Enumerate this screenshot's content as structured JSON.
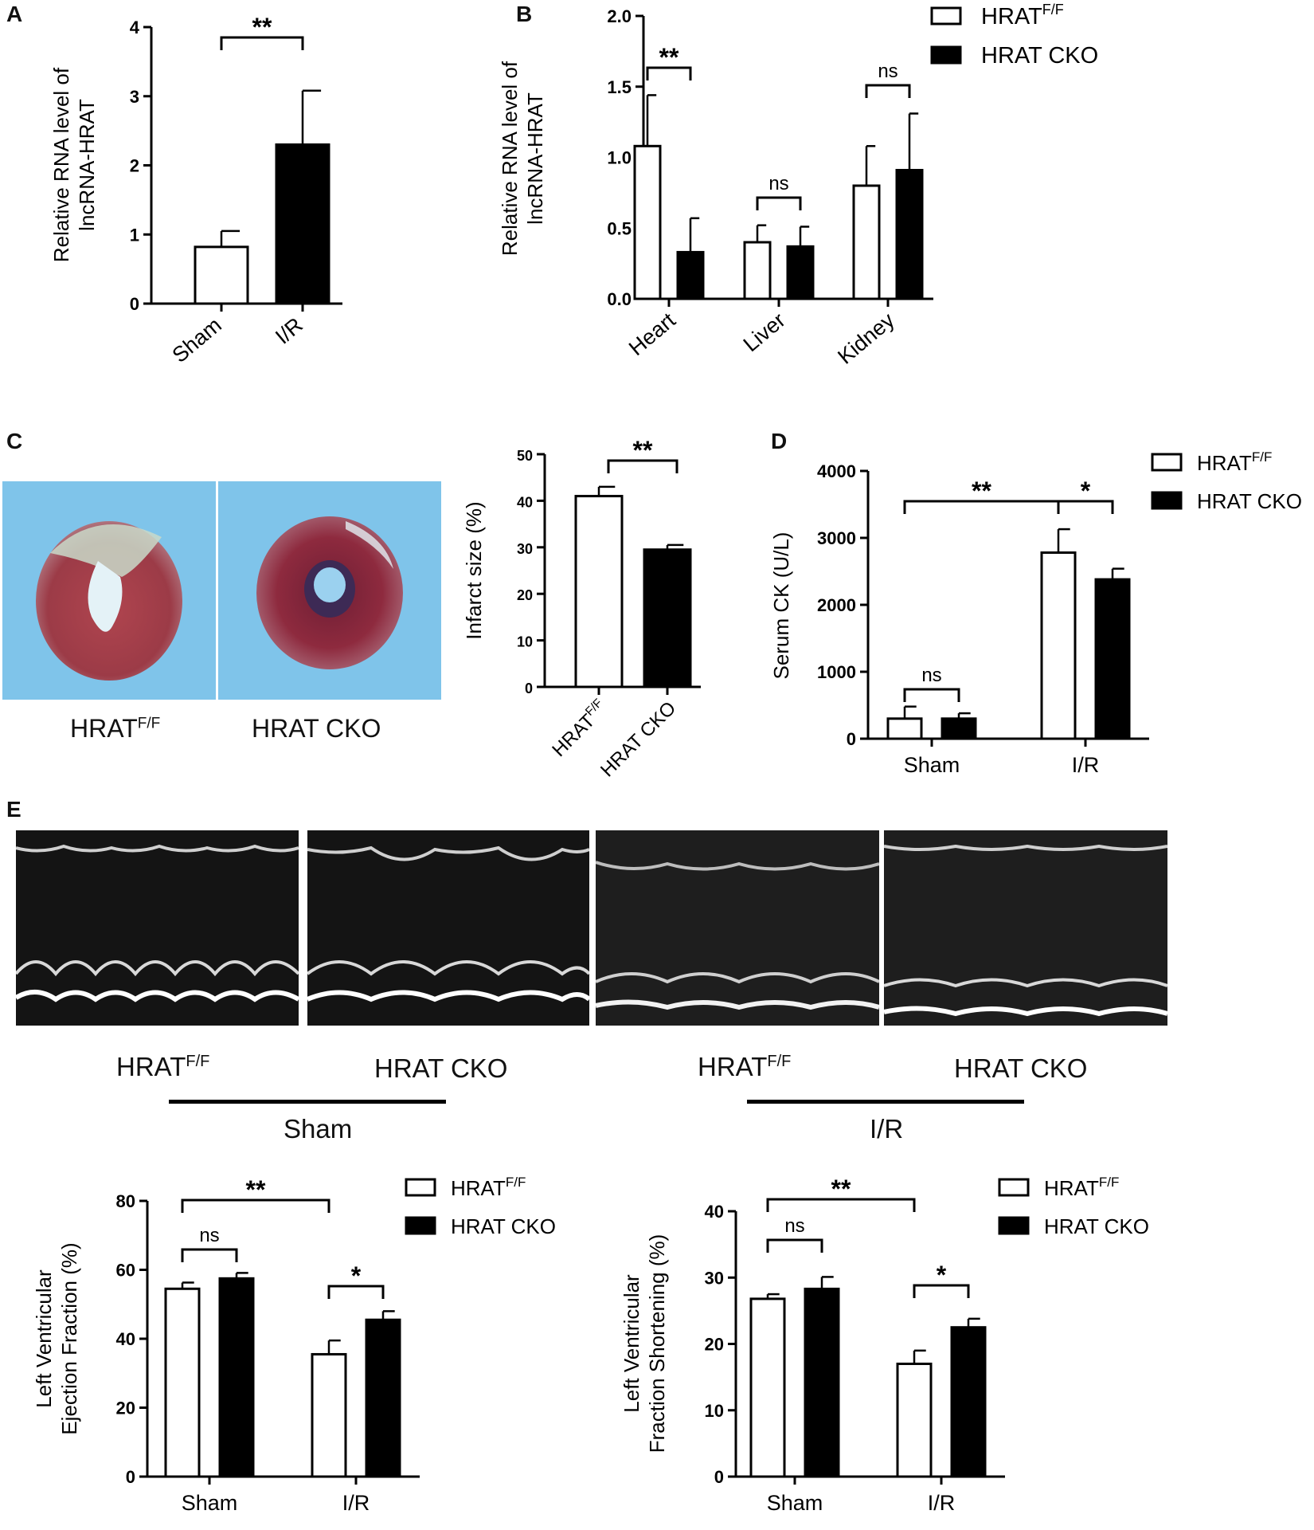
{
  "panel_letters": {
    "a": "A",
    "b": "B",
    "c": "C",
    "d": "D",
    "e": "E"
  },
  "legend": {
    "ff_base": "HRAT",
    "ff_sup": "F/F",
    "cko": "HRAT CKO"
  },
  "photo_labels": {
    "ff_base": "HRAT",
    "ff_sup": "F/F",
    "cko": "HRAT CKO"
  },
  "echo_labels": {
    "sham_ff_base": "HRAT",
    "sham_ff_sup": "F/F",
    "sham_cko": "HRAT CKO",
    "sham_group": "Sham",
    "ir_ff_base": "HRAT",
    "ir_ff_sup": "F/F",
    "ir_cko": "HRAT CKO",
    "ir_group": "I/R"
  },
  "colors": {
    "open_bar": "#ffffff",
    "filled_bar": "#000000",
    "stain_bg": "#7fc4ea",
    "echo_bg": "#1a1a1a"
  },
  "chart_data": [
    {
      "id": "A",
      "type": "bar",
      "ylabel": [
        "Relative RNA level of",
        "lncRNA-HRAT"
      ],
      "ylim": [
        0,
        4
      ],
      "yticks": [
        "0",
        "1",
        "2",
        "3",
        "4"
      ],
      "categories": [
        "Sham",
        "I/R"
      ],
      "values": [
        0.82,
        2.3
      ],
      "errors": [
        0.23,
        0.78
      ],
      "fills": [
        "open",
        "filled"
      ],
      "significance": [
        {
          "label": "**"
        }
      ]
    },
    {
      "id": "B",
      "type": "bar",
      "ylabel": [
        "Relative RNA level of",
        "lncRNA-HRAT"
      ],
      "ylim": [
        0,
        2.0
      ],
      "yticks": [
        "0.0",
        "0.5",
        "1.0",
        "1.5",
        "2.0"
      ],
      "categories": [
        "Heart",
        "Liver",
        "Kidney"
      ],
      "series": [
        {
          "name": "HRATF/F",
          "values": [
            1.08,
            0.4,
            0.8
          ],
          "errors": [
            0.36,
            0.12,
            0.28
          ]
        },
        {
          "name": "HRAT CKO",
          "values": [
            0.33,
            0.37,
            0.91
          ],
          "errors": [
            0.24,
            0.14,
            0.4
          ]
        }
      ],
      "significance": [
        {
          "label": "**"
        },
        {
          "label": "ns"
        },
        {
          "label": "ns"
        }
      ],
      "legend_position": "top-right"
    },
    {
      "id": "C",
      "type": "bar",
      "ylabel": [
        "Infarct size (%)"
      ],
      "ylim": [
        0,
        50
      ],
      "yticks": [
        "0",
        "10",
        "20",
        "30",
        "40",
        "50"
      ],
      "categories": [
        "HRATF/F",
        "HRAT CKO"
      ],
      "values": [
        41,
        29.5
      ],
      "errors": [
        2,
        1
      ],
      "fills": [
        "open",
        "filled"
      ],
      "significance": [
        {
          "label": "**"
        }
      ]
    },
    {
      "id": "D",
      "type": "bar",
      "ylabel": [
        "Serum CK (U/L)"
      ],
      "ylim": [
        0,
        4000
      ],
      "yticks": [
        "0",
        "1000",
        "2000",
        "3000",
        "4000"
      ],
      "categories": [
        "Sham",
        "I/R"
      ],
      "series": [
        {
          "name": "HRATF/F",
          "values": [
            300,
            2780
          ],
          "errors": [
            180,
            350
          ]
        },
        {
          "name": "HRAT CKO",
          "values": [
            300,
            2380
          ],
          "errors": [
            80,
            160
          ]
        }
      ],
      "significance": [
        {
          "label": "ns"
        },
        {
          "label": "*"
        },
        {
          "label": "**"
        }
      ],
      "legend_position": "top-right"
    },
    {
      "id": "E1",
      "type": "bar",
      "ylabel": [
        "Left Ventricular",
        "Ejection Fraction (%)"
      ],
      "ylim": [
        0,
        80
      ],
      "yticks": [
        "0",
        "20",
        "40",
        "60",
        "80"
      ],
      "categories": [
        "Sham",
        "I/R"
      ],
      "series": [
        {
          "name": "HRATF/F",
          "values": [
            54.5,
            35.5
          ],
          "errors": [
            1.8,
            4
          ]
        },
        {
          "name": "HRAT CKO",
          "values": [
            57.5,
            45.5
          ],
          "errors": [
            1.6,
            2.5
          ]
        }
      ],
      "significance": [
        {
          "label": "ns"
        },
        {
          "label": "*"
        },
        {
          "label": "**"
        }
      ],
      "legend_position": "top-right"
    },
    {
      "id": "E2",
      "type": "bar",
      "ylabel": [
        "Left Ventricular",
        "Fraction Shortening (%)"
      ],
      "ylim": [
        0,
        40
      ],
      "yticks": [
        "0",
        "10",
        "20",
        "30",
        "40"
      ],
      "categories": [
        "Sham",
        "I/R"
      ],
      "series": [
        {
          "name": "HRATF/F",
          "values": [
            26.8,
            17
          ],
          "errors": [
            0.7,
            2
          ]
        },
        {
          "name": "HRAT CKO",
          "values": [
            28.3,
            22.5
          ],
          "errors": [
            1.8,
            1.3
          ]
        }
      ],
      "significance": [
        {
          "label": "ns"
        },
        {
          "label": "*"
        },
        {
          "label": "**"
        }
      ],
      "legend_position": "top-right"
    }
  ]
}
